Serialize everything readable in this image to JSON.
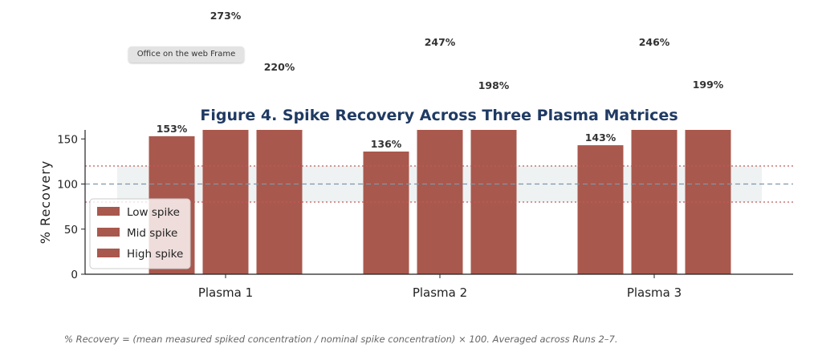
{
  "frame_tag": "Office on the web Frame",
  "footnote": "% Recovery = (mean measured spiked concentration / nominal spike concentration) × 100. Averaged across Runs 2–7.",
  "colors": {
    "bar": "#a9584d",
    "title": "#1f3a63",
    "band": "#eef2f2",
    "limit_line": "#c05a5a",
    "target_line": "#7f96aa"
  },
  "chart_data": {
    "type": "bar",
    "title": "Figure 4. Spike Recovery Across Three Plasma Matrices",
    "xlabel": "",
    "ylabel": "% Recovery",
    "categories": [
      "Plasma 1",
      "Plasma 2",
      "Plasma 3"
    ],
    "series": [
      {
        "name": "Low spike",
        "values": [
          153,
          136,
          143
        ],
        "labels": [
          "153%",
          "136%",
          "143%"
        ]
      },
      {
        "name": "Mid spike",
        "values": [
          273,
          247,
          246
        ],
        "labels": [
          "273%",
          "247%",
          "246%"
        ]
      },
      {
        "name": "High spike",
        "values": [
          220,
          198,
          199
        ],
        "labels": [
          "220%",
          "198%",
          "199%"
        ]
      }
    ],
    "ylim": [
      0,
      160
    ],
    "yticks": [
      0,
      50,
      100,
      150
    ],
    "ytick_labels": [
      "0",
      "50",
      "100",
      "150"
    ],
    "reference_lines": {
      "target": 100,
      "lower_limit": 80,
      "upper_limit": 120
    },
    "acceptance_band": [
      80,
      120
    ],
    "legend_position": "lower-left",
    "grid": false,
    "bars_clipped_at_ylim": true
  }
}
